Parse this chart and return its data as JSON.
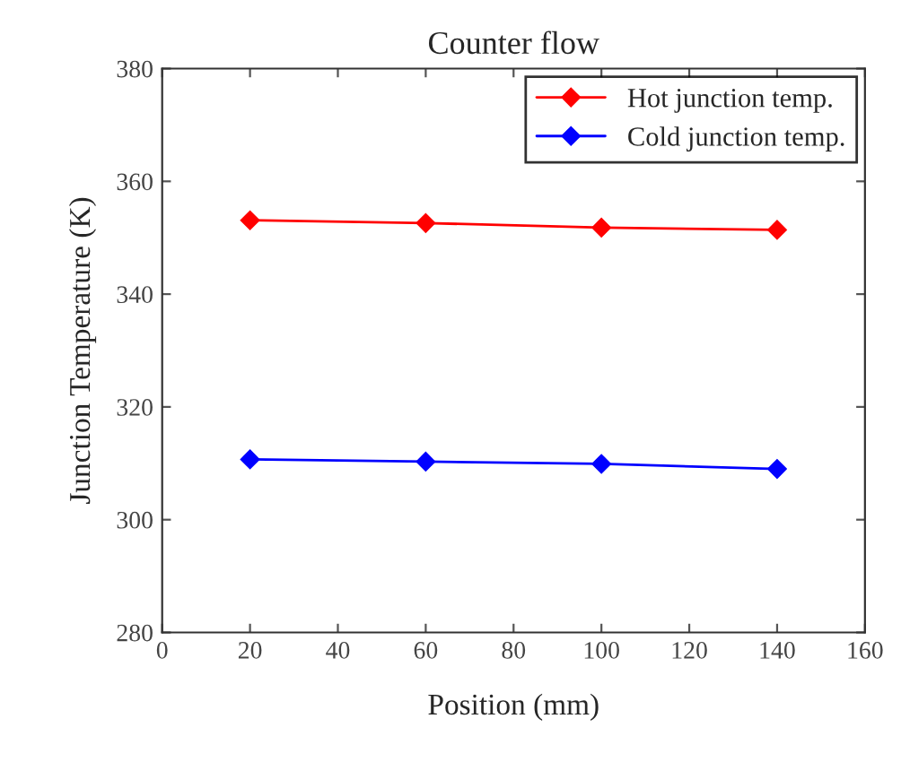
{
  "chart_data": {
    "type": "line",
    "title": "Counter flow",
    "xlabel": "Position (mm)",
    "ylabel": "Junction Temperature (K)",
    "x": [
      20,
      60,
      100,
      140
    ],
    "series": [
      {
        "name": "Hot junction temp.",
        "color": "#ff0000",
        "values": [
          353.1,
          352.6,
          351.8,
          351.4
        ]
      },
      {
        "name": "Cold junction temp.",
        "color": "#0000ff",
        "values": [
          310.7,
          310.3,
          309.9,
          309.0
        ]
      }
    ],
    "xlim": [
      0,
      160
    ],
    "xticks": [
      0,
      20,
      40,
      60,
      80,
      100,
      120,
      140,
      160
    ],
    "ylim": [
      280,
      380
    ],
    "yticks": [
      280,
      300,
      320,
      340,
      360,
      380
    ],
    "grid": false,
    "legend": "top right",
    "marker": "diamond",
    "line_style": "solid"
  }
}
